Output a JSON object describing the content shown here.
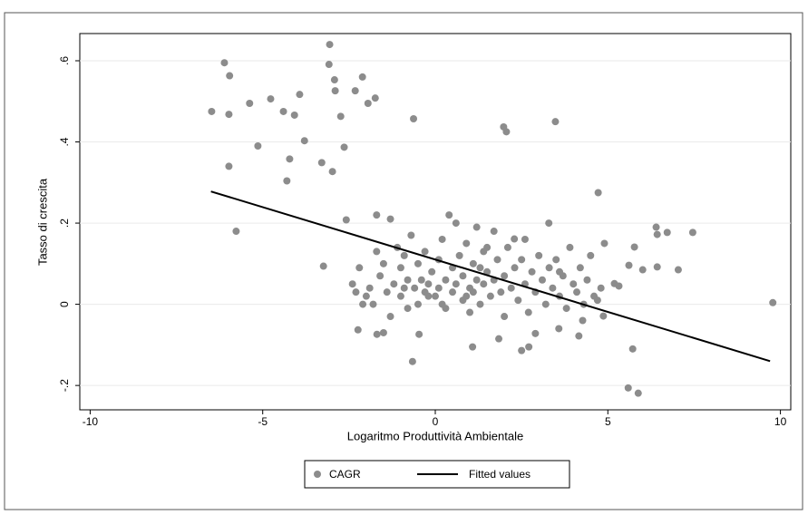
{
  "chart_data": {
    "type": "scatter",
    "x_label": "Logaritmo Produttività Ambientale",
    "y_label": "Tasso di crescita",
    "xlim": [
      -10.3,
      10.3
    ],
    "ylim": [
      -0.26,
      0.667
    ],
    "xticks": [
      -10,
      -5,
      0,
      5,
      10
    ],
    "yticks": [
      {
        "value": 0.6,
        "label": ".6"
      },
      {
        "value": 0.4,
        "label": ".4"
      },
      {
        "value": 0.2,
        "label": ".2"
      },
      0,
      {
        "value": -0.2,
        "label": "-.2"
      }
    ],
    "grid": true,
    "legend": "bottom",
    "series": [
      {
        "name": "CAGR",
        "type": "scatter",
        "color": "#8c8c8c",
        "x": [
          -6.48,
          -6.11,
          -5.96,
          -5.98,
          -5.98,
          -5.77,
          -5.38,
          -5.14,
          -4.77,
          -4.4,
          -4.08,
          -3.93,
          -4.22,
          -4.3,
          -3.79,
          -3.29,
          -3.06,
          -3.08,
          -2.92,
          -2.9,
          -2.74,
          -2.98,
          -2.64,
          -2.32,
          -2.11,
          -1.95,
          -1.74,
          -2.58,
          -3.24,
          -0.63,
          1.98,
          2.06,
          3.48,
          4.72,
          6.4,
          6.43,
          6.72,
          7.46,
          5.77,
          3.29,
          2.29,
          5.61,
          6.01,
          6.43,
          7.04,
          9.78,
          5.59,
          5.88,
          5.72,
          -0.66,
          1.08,
          1.84,
          2.5,
          2.71,
          -2.24,
          -1.69,
          -0.47,
          4.16,
          4.27,
          4.87,
          2.9,
          3.58,
          5.19,
          5.32,
          -2.4,
          -2.3,
          -2.2,
          -2.0,
          -1.9,
          -1.8,
          -1.7,
          -1.7,
          -1.6,
          -1.5,
          -1.4,
          -1.3,
          -1.3,
          -1.2,
          -1.1,
          -1.0,
          -1.0,
          -0.9,
          -0.8,
          -0.8,
          -0.7,
          -0.6,
          -0.5,
          -0.5,
          -0.4,
          -0.3,
          -0.3,
          -0.2,
          -0.1,
          0.0,
          0.1,
          0.1,
          0.2,
          0.3,
          0.3,
          0.4,
          0.5,
          0.5,
          0.6,
          0.6,
          0.7,
          0.8,
          0.8,
          0.9,
          1.0,
          1.0,
          1.1,
          1.1,
          1.2,
          1.2,
          1.3,
          1.4,
          1.4,
          1.5,
          1.6,
          1.7,
          1.7,
          1.8,
          1.9,
          2.0,
          2.0,
          2.1,
          2.2,
          2.3,
          2.4,
          2.5,
          2.6,
          2.7,
          2.8,
          2.9,
          3.0,
          3.1,
          3.2,
          3.3,
          3.4,
          3.5,
          3.6,
          3.7,
          3.8,
          3.9,
          4.0,
          4.1,
          4.2,
          4.3,
          4.4,
          4.5,
          4.6,
          4.8,
          4.9,
          -2.1,
          -1.5,
          -0.9,
          0.2,
          1.5,
          2.6,
          3.6,
          4.7,
          0.9,
          -0.2,
          1.3
        ],
        "values": [
          0.475,
          0.595,
          0.563,
          0.468,
          0.34,
          0.18,
          0.495,
          0.39,
          0.506,
          0.475,
          0.466,
          0.517,
          0.358,
          0.304,
          0.403,
          0.349,
          0.64,
          0.591,
          0.553,
          0.526,
          0.463,
          0.327,
          0.387,
          0.526,
          0.56,
          0.495,
          0.508,
          0.208,
          0.094,
          0.457,
          0.437,
          0.425,
          0.45,
          0.275,
          0.19,
          0.172,
          0.177,
          0.177,
          0.141,
          0.2,
          0.161,
          0.096,
          0.085,
          0.092,
          0.085,
          0.004,
          -0.206,
          -0.219,
          -0.11,
          -0.141,
          -0.105,
          -0.085,
          -0.114,
          -0.105,
          -0.063,
          -0.074,
          -0.074,
          -0.078,
          -0.04,
          -0.029,
          -0.072,
          -0.06,
          0.051,
          0.045,
          0.05,
          0.03,
          0.09,
          0.02,
          0.04,
          0.0,
          0.13,
          0.22,
          0.07,
          0.1,
          0.03,
          0.21,
          -0.03,
          0.05,
          0.14,
          0.09,
          0.02,
          0.12,
          0.06,
          -0.01,
          0.17,
          0.04,
          0.1,
          0.0,
          0.06,
          0.13,
          0.03,
          0.05,
          0.08,
          0.02,
          0.11,
          0.04,
          0.16,
          0.06,
          -0.01,
          0.22,
          0.09,
          0.03,
          0.2,
          0.05,
          0.12,
          0.01,
          0.07,
          0.15,
          0.04,
          -0.02,
          0.1,
          0.03,
          0.19,
          0.06,
          0.0,
          0.13,
          0.05,
          0.08,
          0.02,
          0.18,
          0.06,
          0.11,
          0.03,
          0.07,
          -0.03,
          0.14,
          0.04,
          0.09,
          0.01,
          0.11,
          0.05,
          -0.02,
          0.08,
          0.03,
          0.12,
          0.06,
          0.0,
          0.09,
          0.04,
          0.11,
          0.02,
          0.07,
          -0.01,
          0.14,
          0.05,
          0.03,
          0.09,
          0.0,
          0.06,
          0.12,
          0.02,
          0.04,
          0.15,
          0.0,
          -0.07,
          0.04,
          0.0,
          0.14,
          0.16,
          0.08,
          0.01,
          0.02,
          0.02,
          0.09
        ]
      },
      {
        "name": "Fitted values",
        "type": "line",
        "color": "#000000",
        "x": [
          -6.5,
          9.7
        ],
        "values": [
          0.278,
          -0.14
        ]
      }
    ]
  }
}
